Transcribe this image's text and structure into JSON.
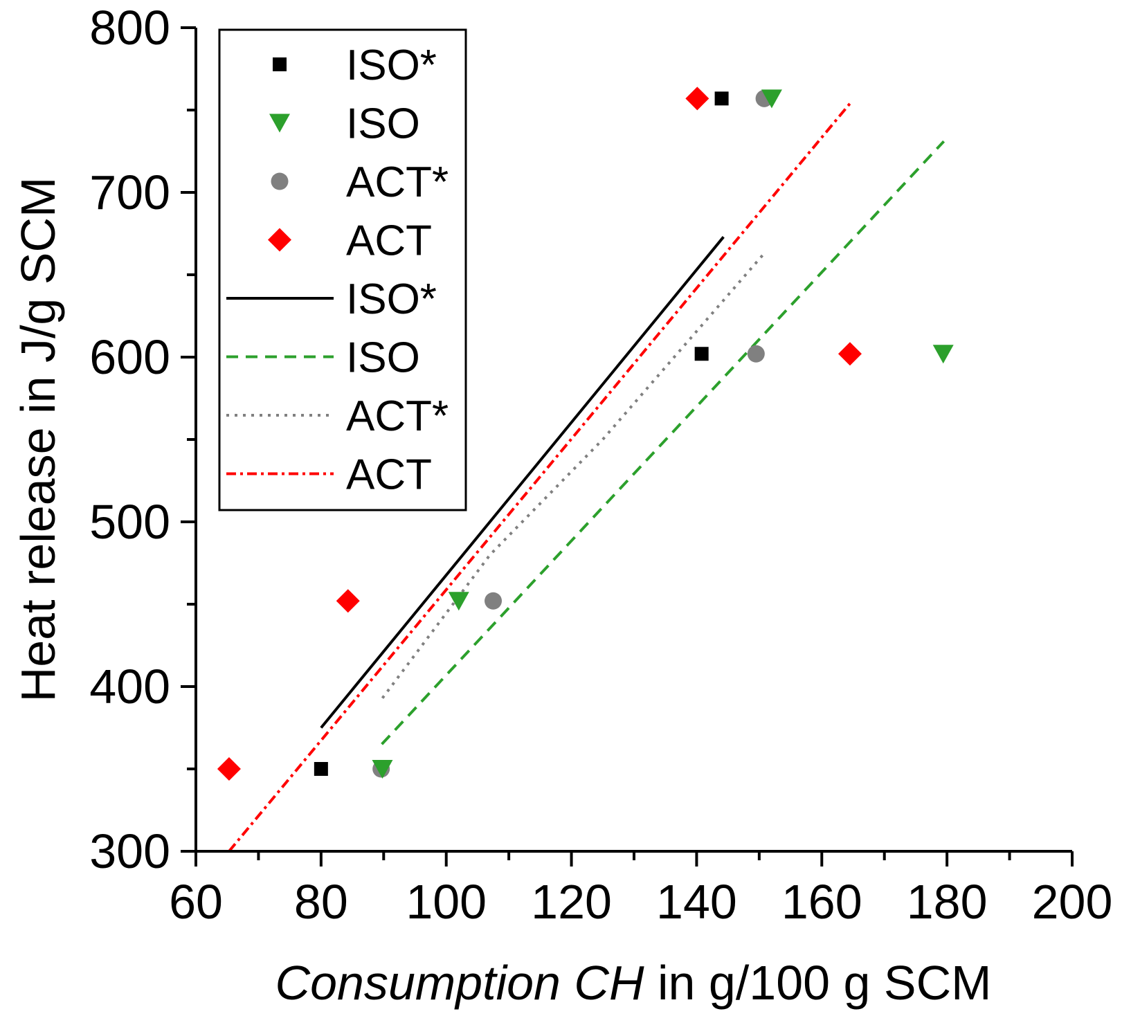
{
  "chart_data": {
    "type": "scatter",
    "title": "",
    "xlabel_italic": "Consumption CH",
    "xlabel_rest": " in g/100 g SCM",
    "ylabel": "Heat release in J/g SCM",
    "xlim": [
      60,
      200
    ],
    "ylim": [
      300,
      800
    ],
    "x_ticks": [
      60,
      80,
      100,
      120,
      140,
      160,
      180,
      200
    ],
    "y_ticks": [
      300,
      400,
      500,
      600,
      700,
      800
    ],
    "x_tick_labels": [
      "60",
      "80",
      "100",
      "120",
      "140",
      "160",
      "180",
      "200"
    ],
    "y_tick_labels": [
      "300",
      "400",
      "500",
      "600",
      "700",
      "800"
    ],
    "legend_position": "top-left",
    "scatter_series": [
      {
        "name": "ISO*",
        "marker": "square",
        "color": "#000000",
        "points": [
          [
            80,
            350
          ],
          [
            140.8,
            602
          ],
          [
            144,
            757
          ]
        ]
      },
      {
        "name": "ISO",
        "marker": "triangle-down",
        "color": "#2ca02c",
        "points": [
          [
            89.8,
            350
          ],
          [
            102,
            452
          ],
          [
            152,
            757
          ],
          [
            179.4,
            602
          ]
        ]
      },
      {
        "name": "ACT*",
        "marker": "circle",
        "color": "#808080",
        "points": [
          [
            89.6,
            350
          ],
          [
            107.5,
            452
          ],
          [
            149.5,
            602
          ],
          [
            150.8,
            757
          ]
        ]
      },
      {
        "name": "ACT",
        "marker": "diamond",
        "color": "#ff0000",
        "points": [
          [
            65.3,
            350
          ],
          [
            84.3,
            452
          ],
          [
            140.1,
            757
          ],
          [
            164.5,
            602
          ]
        ]
      }
    ],
    "fit_series": [
      {
        "name": "ISO*",
        "style": "solid",
        "color": "#000000",
        "points": [
          [
            80,
            375
          ],
          [
            144.3,
            673
          ]
        ]
      },
      {
        "name": "ISO",
        "style": "dashed",
        "color": "#2ca02c",
        "points": [
          [
            89.7,
            365
          ],
          [
            179.5,
            731
          ]
        ]
      },
      {
        "name": "ACT*",
        "style": "dotted",
        "color": "#808080",
        "points": [
          [
            89.8,
            393
          ],
          [
            107,
            480
          ],
          [
            125,
            550
          ],
          [
            150.8,
            663
          ]
        ]
      },
      {
        "name": "ACT",
        "style": "dashdot",
        "color": "#ff0000",
        "points": [
          [
            65.3,
            300
          ],
          [
            164.5,
            754
          ]
        ]
      }
    ]
  }
}
